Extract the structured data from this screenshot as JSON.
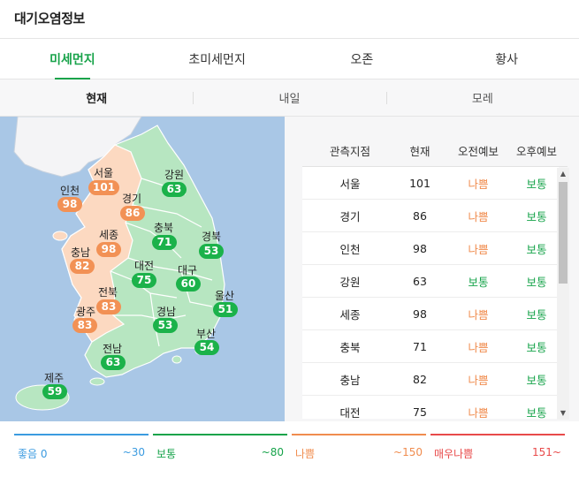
{
  "header": {
    "title": "대기오염정보"
  },
  "tabs": [
    {
      "label": "미세먼지",
      "active": true
    },
    {
      "label": "초미세먼지",
      "active": false
    },
    {
      "label": "오존",
      "active": false
    },
    {
      "label": "황사",
      "active": false
    }
  ],
  "subtabs": [
    {
      "label": "현재",
      "active": true
    },
    {
      "label": "내일",
      "active": false
    },
    {
      "label": "모레",
      "active": false
    }
  ],
  "map": {
    "regions": [
      {
        "name": "서울",
        "value": "101",
        "level": "bad"
      },
      {
        "name": "인천",
        "value": "98",
        "level": "bad"
      },
      {
        "name": "경기",
        "value": "86",
        "level": "bad"
      },
      {
        "name": "강원",
        "value": "63",
        "level": "good"
      },
      {
        "name": "충북",
        "value": "71",
        "level": "good"
      },
      {
        "name": "세종",
        "value": "98",
        "level": "bad"
      },
      {
        "name": "충남",
        "value": "82",
        "level": "bad"
      },
      {
        "name": "경북",
        "value": "53",
        "level": "good"
      },
      {
        "name": "대전",
        "value": "75",
        "level": "good"
      },
      {
        "name": "대구",
        "value": "60",
        "level": "good"
      },
      {
        "name": "전북",
        "value": "83",
        "level": "bad"
      },
      {
        "name": "울산",
        "value": "51",
        "level": "good"
      },
      {
        "name": "광주",
        "value": "83",
        "level": "bad"
      },
      {
        "name": "경남",
        "value": "53",
        "level": "good"
      },
      {
        "name": "부산",
        "value": "54",
        "level": "good"
      },
      {
        "name": "전남",
        "value": "63",
        "level": "good"
      },
      {
        "name": "제주",
        "value": "59",
        "level": "good"
      }
    ]
  },
  "table": {
    "headers": [
      "관측지점",
      "현재",
      "오전예보",
      "오후예보"
    ],
    "rows": [
      {
        "station": "서울",
        "now": "101",
        "am": "나쁨",
        "pm": "보통",
        "am_level": "bad",
        "pm_level": "good"
      },
      {
        "station": "경기",
        "now": "86",
        "am": "나쁨",
        "pm": "보통",
        "am_level": "bad",
        "pm_level": "good"
      },
      {
        "station": "인천",
        "now": "98",
        "am": "나쁨",
        "pm": "보통",
        "am_level": "bad",
        "pm_level": "good"
      },
      {
        "station": "강원",
        "now": "63",
        "am": "보통",
        "pm": "보통",
        "am_level": "good",
        "pm_level": "good"
      },
      {
        "station": "세종",
        "now": "98",
        "am": "나쁨",
        "pm": "보통",
        "am_level": "bad",
        "pm_level": "good"
      },
      {
        "station": "충북",
        "now": "71",
        "am": "나쁨",
        "pm": "보통",
        "am_level": "bad",
        "pm_level": "good"
      },
      {
        "station": "충남",
        "now": "82",
        "am": "나쁨",
        "pm": "보통",
        "am_level": "bad",
        "pm_level": "good"
      },
      {
        "station": "대전",
        "now": "75",
        "am": "나쁨",
        "pm": "보통",
        "am_level": "bad",
        "pm_level": "good"
      }
    ]
  },
  "legend": [
    {
      "label": "좋음 0",
      "range": "~30",
      "color": "#3b9be0"
    },
    {
      "label": "보통",
      "range": "~80",
      "color": "#16a34a"
    },
    {
      "label": "나쁨",
      "range": "~150",
      "color": "#f08c4e"
    },
    {
      "label": "매우나쁨",
      "range": "151~",
      "color": "#e84a4a"
    }
  ],
  "colors": {
    "accent": "#18a34a",
    "bad": "#f08c4e",
    "good": "#16a34a"
  }
}
